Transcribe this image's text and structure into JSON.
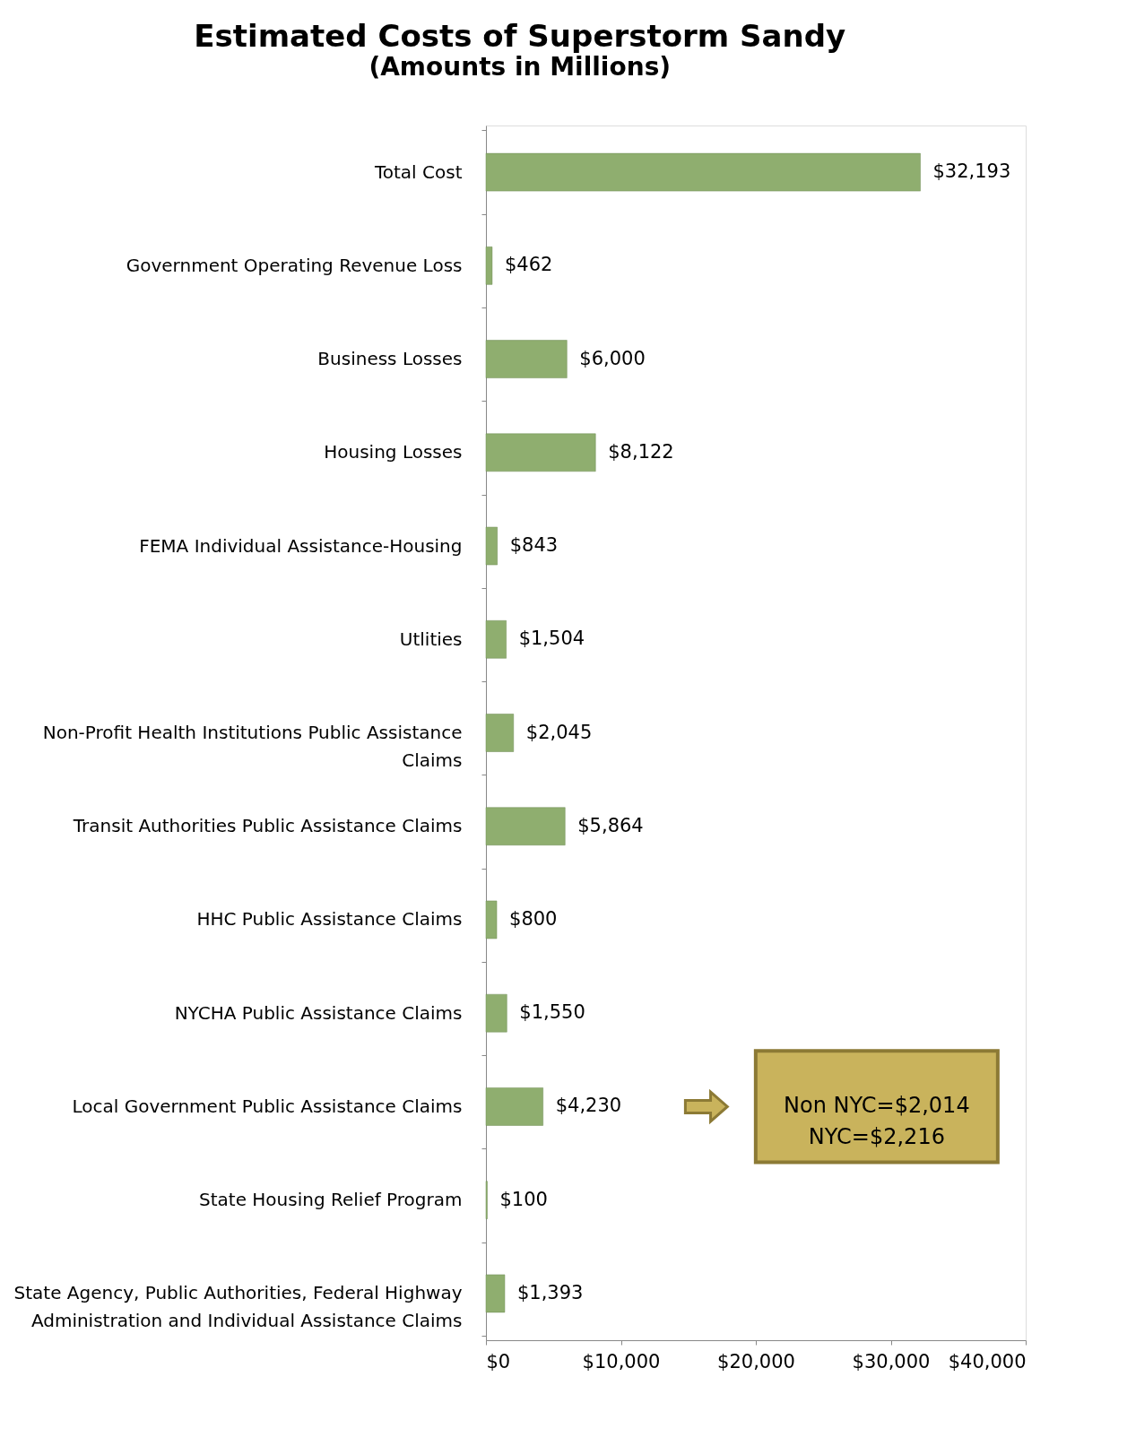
{
  "chart_data": {
    "type": "bar",
    "orientation": "horizontal",
    "title": "Estimated Costs of Superstorm Sandy",
    "subtitle": "(Amounts in Millions)",
    "categories": [
      "Total Cost",
      "Government Operating Revenue Loss",
      "Business Losses",
      "Housing Losses",
      "FEMA Individual Assistance-Housing",
      "Utlities",
      "Non-Profit Health Institutions Public Assistance Claims",
      "Transit Authorities Public Assistance Claims",
      "HHC Public Assistance Claims",
      "NYCHA Public Assistance Claims",
      "Local Government Public Assistance Claims",
      "State Housing Relief Program",
      "State Agency, Public Authorities, Federal Highway Administration and Individual Assistance Claims"
    ],
    "values": [
      32193,
      462,
      6000,
      8122,
      843,
      1504,
      2045,
      5864,
      800,
      1550,
      4230,
      100,
      1393
    ],
    "value_labels": [
      "$32,193",
      "$462",
      "$6,000",
      "$8,122",
      "$843",
      "$1,504",
      "$2,045",
      "$5,864",
      "$800",
      "$1,550",
      "$4,230",
      "$100",
      "$1,393"
    ],
    "color": "#8fae6f",
    "xlim": [
      0,
      40000
    ],
    "xticks": [
      {
        "value": 0,
        "label": "$0"
      },
      {
        "value": 10000,
        "label": "$10,000"
      },
      {
        "value": 20000,
        "label": "$20,000"
      },
      {
        "value": 30000,
        "label": "$30,000"
      },
      {
        "value": 40000,
        "label": "$40,000"
      }
    ],
    "grid": false,
    "legend": false,
    "annotations": [
      "Non NYC=$2,014\nNYC=$2,216"
    ]
  }
}
